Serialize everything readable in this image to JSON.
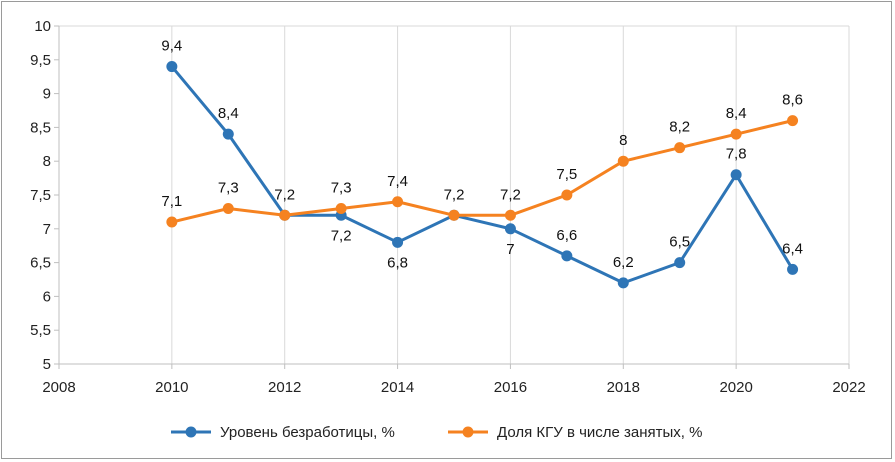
{
  "chart_data": {
    "type": "line",
    "title": "",
    "xlabel": "",
    "ylabel": "",
    "xlim": [
      2008,
      2022
    ],
    "ylim": [
      5,
      10
    ],
    "x_ticks": [
      2008,
      2010,
      2012,
      2014,
      2016,
      2018,
      2020,
      2022
    ],
    "y_ticks": [
      5,
      5.5,
      6,
      6.5,
      7,
      7.5,
      8,
      8.5,
      9,
      9.5,
      10
    ],
    "x_tick_labels": [
      "2008",
      "2010",
      "2012",
      "2014",
      "2016",
      "2018",
      "2020",
      "2022"
    ],
    "y_tick_labels": [
      "5",
      "5,5",
      "6",
      "6,5",
      "7",
      "7,5",
      "8",
      "8,5",
      "9",
      "9,5",
      "10"
    ],
    "grid": "vertical",
    "legend_position": "bottom",
    "series": [
      {
        "name": "Уровень безработицы, %",
        "color": "#2e75b6",
        "x": [
          2010,
          2011,
          2012,
          2013,
          2014,
          2015,
          2016,
          2017,
          2018,
          2019,
          2020,
          2021
        ],
        "values": [
          9.4,
          8.4,
          7.2,
          7.2,
          6.8,
          7.2,
          7.0,
          6.6,
          6.2,
          6.5,
          7.8,
          6.4
        ],
        "labels": [
          "9,4",
          "8,4",
          "",
          "7,2",
          "6,8",
          "",
          "7",
          "6,6",
          "6,2",
          "6,5",
          "7,8",
          "6,4"
        ],
        "label_pos": [
          "above",
          "above",
          "none",
          "below",
          "below",
          "none",
          "below",
          "above",
          "above",
          "above",
          "above",
          "above"
        ]
      },
      {
        "name": "Доля КГУ в числе занятых, %",
        "color": "#f58220",
        "x": [
          2010,
          2011,
          2012,
          2013,
          2014,
          2015,
          2016,
          2017,
          2018,
          2019,
          2020,
          2021
        ],
        "values": [
          7.1,
          7.3,
          7.2,
          7.3,
          7.4,
          7.2,
          7.2,
          7.5,
          8.0,
          8.2,
          8.4,
          8.6
        ],
        "labels": [
          "7,1",
          "7,3",
          "7,2",
          "7,3",
          "7,4",
          "7,2",
          "7,2",
          "7,5",
          "8",
          "8,2",
          "8,4",
          "8,6"
        ],
        "label_pos": [
          "above",
          "above",
          "above",
          "above",
          "above",
          "above",
          "above",
          "above",
          "above",
          "above",
          "above",
          "above"
        ]
      }
    ]
  }
}
